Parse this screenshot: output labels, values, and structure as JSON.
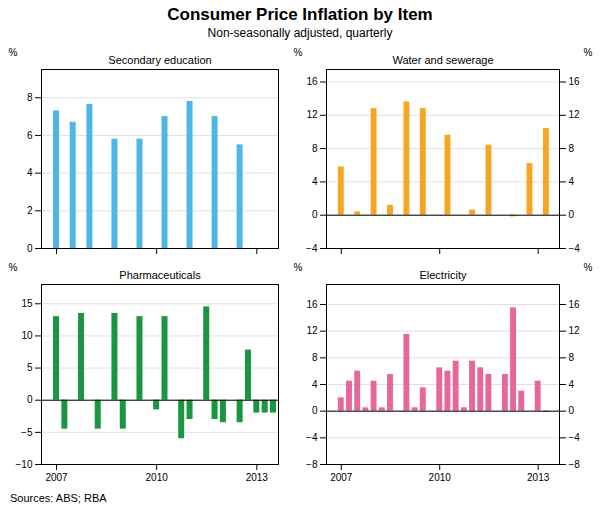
{
  "title": "Consumer Price Inflation by Item",
  "subtitle": "Non-seasonally adjusted, quarterly",
  "annotations": [
    "Sources: ABS; RBA"
  ],
  "chart_data": [
    {
      "type": "bar",
      "title": "Secondary education",
      "color": "#4DB8E8",
      "x": [
        2007.0,
        2007.5,
        2008.0,
        2008.75,
        2009.5,
        2010.25,
        2011.0,
        2011.75,
        2012.5
      ],
      "values": [
        7.3,
        6.7,
        7.65,
        5.8,
        5.8,
        7.0,
        7.8,
        7.0,
        5.5
      ],
      "xlim": [
        2006.55,
        2013.65
      ],
      "xticks": [
        2007,
        2010,
        2013
      ],
      "ylim": [
        0,
        9.5
      ],
      "yticks": [
        0,
        2,
        4,
        6,
        8
      ],
      "ylabel": "%",
      "grid": true,
      "tick_labels": "y"
    },
    {
      "type": "bar",
      "title": "Water and sewerage",
      "color": "#F5A623",
      "x": [
        2007.0,
        2007.5,
        2008.0,
        2008.5,
        2009.0,
        2009.5,
        2010.25,
        2011.0,
        2011.5,
        2012.25,
        2012.75,
        2013.25
      ],
      "values": [
        5.8,
        0.4,
        12.8,
        1.2,
        13.6,
        12.8,
        9.6,
        0.6,
        8.4,
        -0.2,
        6.2,
        10.4
      ],
      "xlim": [
        2006.55,
        2013.65
      ],
      "xticks": [
        2007,
        2010,
        2013
      ],
      "ylim": [
        -4,
        17.5
      ],
      "yticks": [
        -4,
        0,
        4,
        8,
        12,
        16
      ],
      "ylabel": "%",
      "y2lim": [
        -4,
        17.5
      ],
      "y2ticks": [
        -4,
        0,
        4,
        8,
        12,
        16
      ],
      "y2label": "%",
      "grid": true,
      "tick_labels": "y"
    },
    {
      "type": "bar",
      "title": "Pharmaceuticals",
      "color": "#1A9641",
      "x": [
        2007.0,
        2007.25,
        2007.75,
        2008.25,
        2008.75,
        2009.0,
        2009.5,
        2010.0,
        2010.25,
        2010.75,
        2011.0,
        2011.5,
        2011.75,
        2012.0,
        2012.5,
        2012.75,
        2013.0,
        2013.25,
        2013.5
      ],
      "values": [
        13.0,
        -4.5,
        13.5,
        -4.5,
        13.5,
        -4.5,
        13.0,
        -1.5,
        13.0,
        -6.0,
        -3.0,
        14.5,
        -3.0,
        -3.5,
        -3.5,
        7.8,
        -2.0,
        -2.0,
        -2.0
      ],
      "xlim": [
        2006.55,
        2013.65
      ],
      "xticks": [
        2007,
        2010,
        2013
      ],
      "ylim": [
        -10,
        18
      ],
      "yticks": [
        -10,
        -5,
        0,
        5,
        10,
        15
      ],
      "ylabel": "%",
      "grid": true
    },
    {
      "type": "bar",
      "title": "Electricity",
      "color": "#E8679A",
      "x": [
        2007.0,
        2007.25,
        2007.5,
        2007.75,
        2008.0,
        2008.25,
        2008.5,
        2008.75,
        2009.0,
        2009.25,
        2009.5,
        2009.75,
        2010.0,
        2010.25,
        2010.5,
        2010.75,
        2011.0,
        2011.25,
        2011.5,
        2011.75,
        2012.0,
        2012.25,
        2012.5,
        2012.75,
        2013.0,
        2013.25,
        2013.5
      ],
      "values": [
        2.0,
        4.5,
        6.0,
        0.5,
        4.5,
        0.5,
        5.5,
        0.0,
        11.5,
        0.5,
        3.5,
        0.0,
        6.5,
        6.0,
        7.5,
        0.5,
        7.5,
        6.5,
        5.5,
        0.0,
        5.5,
        15.5,
        3.0,
        0.0,
        4.5,
        -0.2,
        0.0
      ],
      "xlim": [
        2006.55,
        2013.65
      ],
      "xticks": [
        2007,
        2010,
        2013
      ],
      "ylim": [
        -8,
        19
      ],
      "yticks": [
        -8,
        -4,
        0,
        4,
        8,
        12,
        16
      ],
      "ylabel": "%",
      "y2lim": [
        -8,
        19
      ],
      "y2ticks": [
        -8,
        -4,
        0,
        4,
        8,
        12,
        16
      ],
      "y2label": "%",
      "grid": true
    }
  ]
}
